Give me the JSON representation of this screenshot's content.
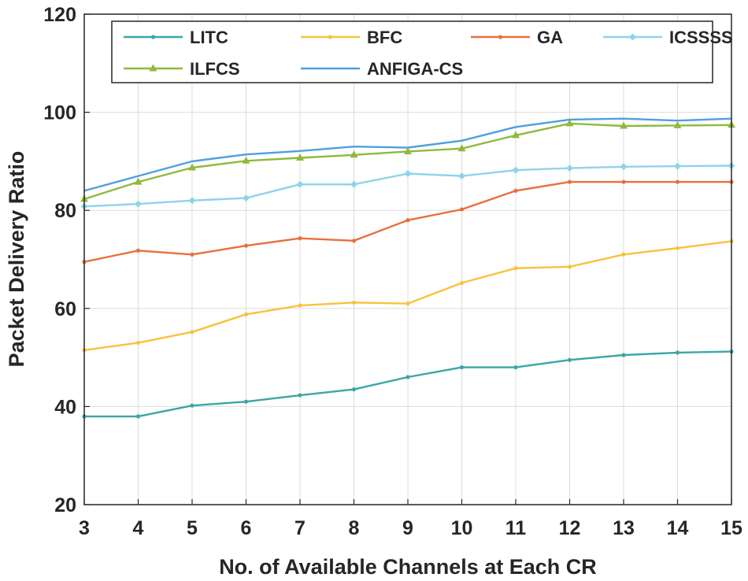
{
  "chart_data": {
    "type": "line",
    "title": "",
    "xlabel": "No. of Available Channels at Each CR",
    "ylabel": "Packet Delivery Ratio",
    "x": [
      3,
      4,
      5,
      6,
      7,
      8,
      9,
      10,
      11,
      12,
      13,
      14,
      15
    ],
    "xlim": [
      3,
      15
    ],
    "ylim": [
      20,
      120
    ],
    "yticks": [
      20,
      40,
      60,
      80,
      100,
      120
    ],
    "xtick_labels": [
      "3",
      "4",
      "5",
      "6",
      "7",
      "8",
      "9",
      "10",
      "11",
      "12",
      "13",
      "14",
      "15"
    ],
    "ytick_labels": [
      "20",
      "40",
      "60",
      "80",
      "100",
      "120"
    ],
    "grid": true,
    "legend_position": "top",
    "series": [
      {
        "name": "LITC",
        "color": "#3aa6a6",
        "marker": "dot",
        "values": [
          38.0,
          38.0,
          40.2,
          41.0,
          42.3,
          43.5,
          46.0,
          48.0,
          48.0,
          49.5,
          50.5,
          51.0,
          51.2
        ]
      },
      {
        "name": "BFC",
        "color": "#f9c23c",
        "marker": "dot",
        "values": [
          51.5,
          53.0,
          55.2,
          58.8,
          60.6,
          61.2,
          61.0,
          65.2,
          68.2,
          68.5,
          71.0,
          72.3,
          73.7
        ]
      },
      {
        "name": "GA",
        "color": "#e8703a",
        "marker": "dot",
        "values": [
          69.5,
          71.8,
          71.0,
          72.8,
          74.3,
          73.8,
          78.0,
          80.2,
          84.0,
          85.8,
          85.8,
          85.8,
          85.8
        ]
      },
      {
        "name": "ICSSSS",
        "color": "#8fd3ea",
        "marker": "diamond",
        "values": [
          80.8,
          81.3,
          82.0,
          82.5,
          85.3,
          85.3,
          87.5,
          87.0,
          88.2,
          88.6,
          88.9,
          89.0,
          89.1
        ]
      },
      {
        "name": "ILFCS",
        "color": "#8fba3c",
        "marker": "triangle",
        "values": [
          82.3,
          85.8,
          88.7,
          90.1,
          90.7,
          91.3,
          92.0,
          92.6,
          95.3,
          97.7,
          97.2,
          97.3,
          97.4
        ]
      },
      {
        "name": "ANFIGA-CS",
        "color": "#4fa0dc",
        "marker": "none",
        "values": [
          84.0,
          87.0,
          90.0,
          91.4,
          92.1,
          93.0,
          92.8,
          94.2,
          97.0,
          98.5,
          98.7,
          98.3,
          98.7
        ]
      }
    ]
  }
}
